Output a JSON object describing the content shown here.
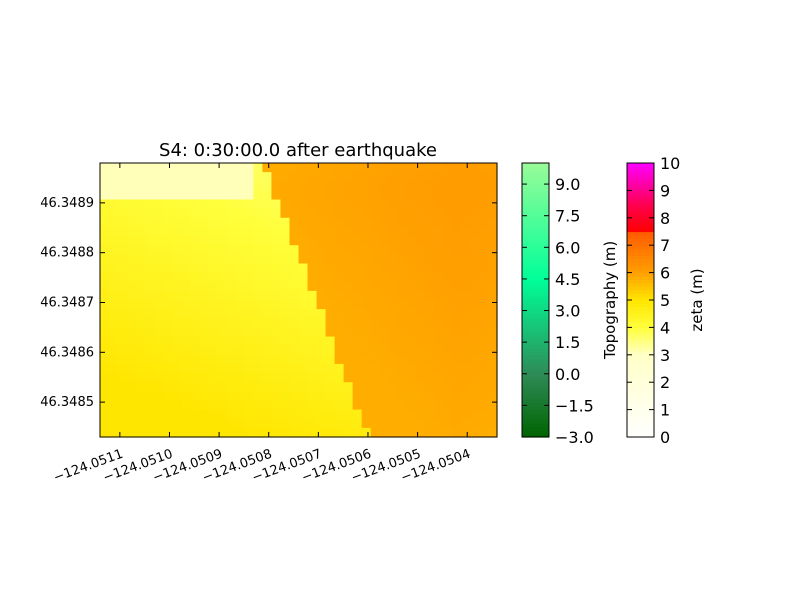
{
  "chart_data": {
    "type": "heatmap",
    "title": "S4: 0:30:00.0 after earthquake",
    "xlabel": "",
    "ylabel": "",
    "xlim": [
      -124.05114,
      -124.05034
    ],
    "ylim": [
      46.34843,
      46.34898
    ],
    "x_ticks": [
      -124.0511,
      -124.051,
      -124.0509,
      -124.0508,
      -124.0507,
      -124.0506,
      -124.0505,
      -124.0504
    ],
    "x_tick_labels": [
      "−124.0511",
      "−124.0510",
      "−124.0509",
      "−124.0508",
      "−124.0507",
      "−124.0506",
      "−124.0505",
      "−124.0504"
    ],
    "y_ticks": [
      46.3485,
      46.3486,
      46.3487,
      46.3488,
      46.3489
    ],
    "y_tick_labels": [
      "46.3485",
      "46.3486",
      "46.3487",
      "46.3488",
      "46.3489"
    ],
    "grid": false,
    "field": {
      "name": "zeta (m)",
      "cols": 44,
      "rows": 30,
      "boundary_x_at_top": -124.05081,
      "boundary_x_at_bottom": -124.0506,
      "dry_side_zeta_range": [
        3.5,
        5.0
      ],
      "wet_side_zeta_range": [
        5.8,
        6.1
      ]
    },
    "colorbars": [
      {
        "label": "Topography (m)",
        "range": [
          -3.0,
          10.0
        ],
        "ticks": [
          -3.0,
          -1.5,
          0.0,
          1.5,
          3.0,
          4.5,
          6.0,
          7.5,
          9.0
        ],
        "tick_labels": [
          "−3.0",
          "−1.5",
          "0.0",
          "1.5",
          "3.0",
          "4.5",
          "6.0",
          "7.5",
          "9.0"
        ],
        "colors": [
          "#006400",
          "#2e8b57",
          "#00ff99",
          "#98fb98"
        ]
      },
      {
        "label": "zeta (m)",
        "range": [
          0,
          10
        ],
        "ticks": [
          0,
          1,
          2,
          3,
          4,
          5,
          6,
          7,
          8,
          9,
          10
        ],
        "tick_labels": [
          "0",
          "1",
          "2",
          "3",
          "4",
          "5",
          "6",
          "7",
          "8",
          "9",
          "10"
        ],
        "colors": [
          "#ffffff",
          "#ffff00",
          "#ff9900",
          "#ff0000",
          "#ff00ff"
        ]
      }
    ]
  }
}
